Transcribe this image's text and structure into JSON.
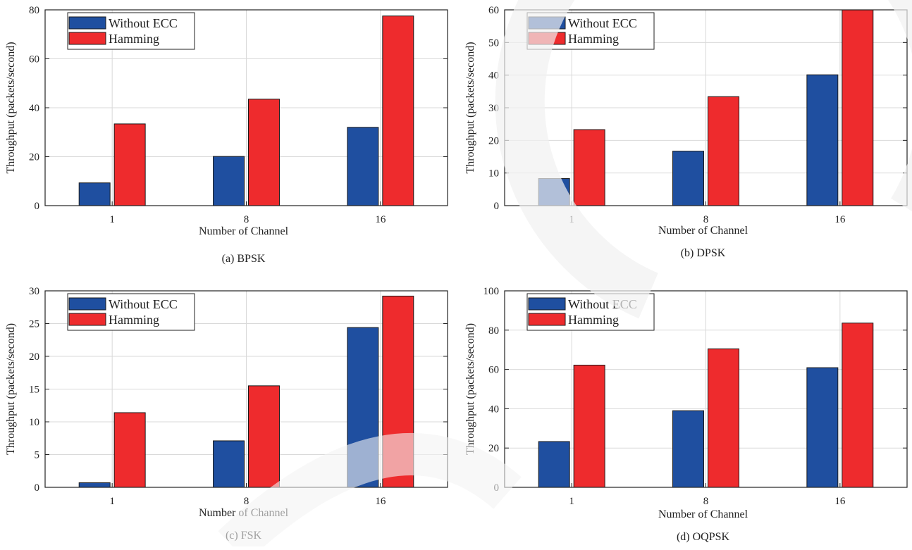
{
  "colors": {
    "without_ecc": "#1f4fa0",
    "hamming": "#ee2b2d",
    "grid": "#d9d9d9",
    "axis": "#222222"
  },
  "chart_data": [
    {
      "type": "bar",
      "caption": "(a) BPSK",
      "categories": [
        "1",
        "8",
        "16"
      ],
      "xlabel": "Number of Channel",
      "ylabel": "Throughput (packets/second)",
      "ylim": [
        0,
        80
      ],
      "yticks": [
        0,
        20,
        40,
        60,
        80
      ],
      "grid": true,
      "legend": "top-left",
      "series": [
        {
          "name": "Without ECC",
          "values": [
            9.3,
            20.1,
            32.0
          ]
        },
        {
          "name": "Hamming",
          "values": [
            33.4,
            43.5,
            77.5
          ]
        }
      ]
    },
    {
      "type": "bar",
      "caption": "(b) DPSK",
      "categories": [
        "1",
        "8",
        "16"
      ],
      "xlabel": "Number of Channel",
      "ylabel": "Throughput (packets/second)",
      "ylim": [
        0,
        60
      ],
      "yticks": [
        0,
        10,
        20,
        30,
        40,
        50,
        60
      ],
      "grid": true,
      "legend": "top-left",
      "series": [
        {
          "name": "Without ECC",
          "values": [
            8.3,
            16.7,
            40.1
          ]
        },
        {
          "name": "Hamming",
          "values": [
            23.3,
            33.4,
            60.0
          ]
        }
      ]
    },
    {
      "type": "bar",
      "caption": "(c) FSK",
      "categories": [
        "1",
        "8",
        "16"
      ],
      "xlabel": "Number of Channel",
      "ylabel": "Throughput (packets/second)",
      "ylim": [
        0,
        30
      ],
      "yticks": [
        0,
        5,
        10,
        15,
        20,
        25,
        30
      ],
      "grid": true,
      "legend": "top-left",
      "series": [
        {
          "name": "Without ECC",
          "values": [
            0.7,
            7.1,
            24.4
          ]
        },
        {
          "name": "Hamming",
          "values": [
            11.4,
            15.5,
            29.2
          ]
        }
      ]
    },
    {
      "type": "bar",
      "caption": "(d) OQPSK",
      "categories": [
        "1",
        "8",
        "16"
      ],
      "xlabel": "Number of Channel",
      "ylabel": "Throughput (packets/second)",
      "ylim": [
        0,
        100
      ],
      "yticks": [
        0,
        20,
        40,
        60,
        80,
        100
      ],
      "grid": true,
      "legend": "top-left",
      "series": [
        {
          "name": "Without ECC",
          "values": [
            23.3,
            39.0,
            60.9
          ]
        },
        {
          "name": "Hamming",
          "values": [
            62.2,
            70.5,
            83.6
          ]
        }
      ]
    }
  ]
}
